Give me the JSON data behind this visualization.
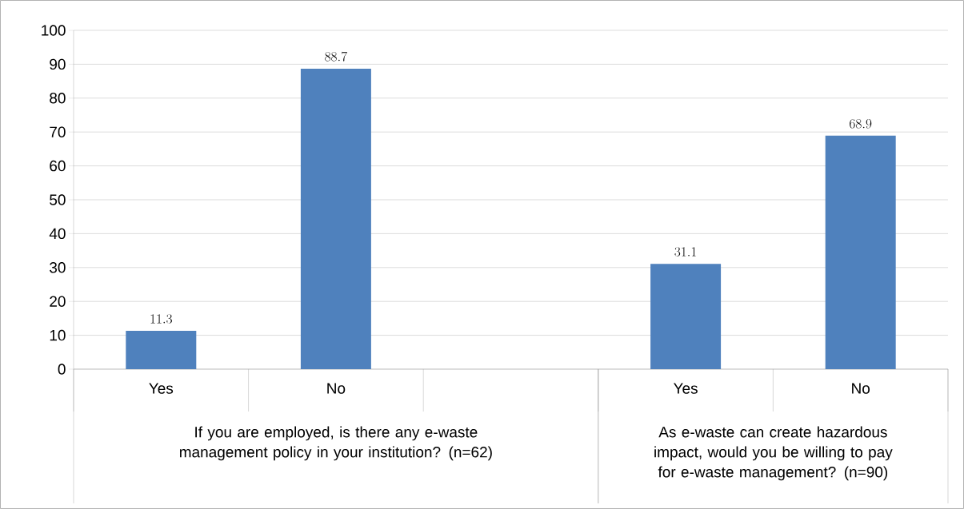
{
  "chart_data": {
    "type": "bar",
    "categories": [
      "Yes",
      "No",
      null,
      "Yes",
      "No"
    ],
    "values": [
      11.3,
      88.7,
      null,
      31.1,
      68.9
    ],
    "color": "#4f81bd",
    "ylim": [
      0,
      100
    ],
    "yticks": [
      0,
      10,
      20,
      30,
      40,
      50,
      60,
      70,
      80,
      90,
      100
    ],
    "grid": "y",
    "data_labels": true,
    "annotations": [
      "If you are employed, is there any e-waste management policy in your institution? (n=62)",
      "As e-waste can create hazardous impact, would you be willing to pay for e-waste management? (n=90)"
    ]
  }
}
